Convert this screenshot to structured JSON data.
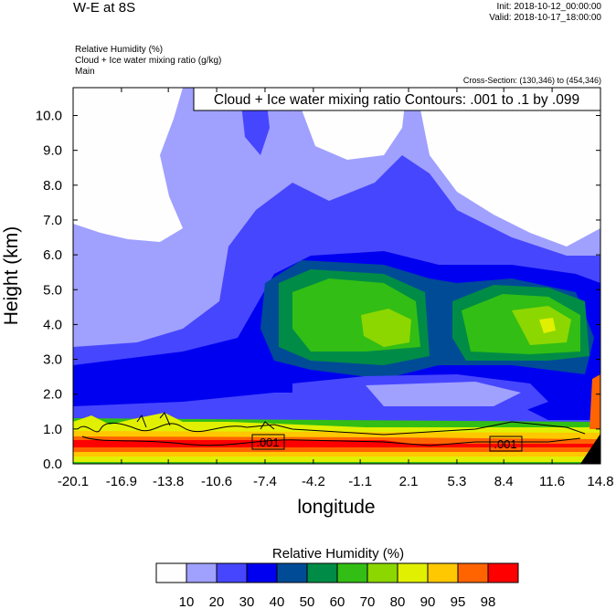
{
  "header": {
    "title": "W-E at 8S",
    "init": "Init: 2018-10-12_00:00:00",
    "valid": "Valid: 2018-10-17_18:00:00",
    "fields": [
      "Relative Humidity   (%)",
      "Cloud + Ice water mixing ratio   (g/kg)",
      "Main"
    ],
    "cross_section": "Cross-Section: (130,346) to (454,346)"
  },
  "chart_data": {
    "type": "heatmap",
    "subtype": "filled contour cross-section with line contours",
    "title": "W-E at 8S",
    "contour_title": "Cloud + Ice water mixing ratio Contours: .001 to .1 by .099",
    "contour_labels": [
      ".001",
      ".001"
    ],
    "xlabel": "longitude",
    "ylabel": "Height (km)",
    "xlim": [
      -20.1,
      14.8
    ],
    "ylim": [
      0,
      10.8
    ],
    "x_ticks": [
      -20.1,
      -16.9,
      -13.8,
      -10.6,
      -7.4,
      -4.2,
      -1.1,
      2.1,
      5.3,
      8.4,
      11.6,
      14.8
    ],
    "x_tick_labels": [
      "-20.1",
      "-16.9",
      "-13.8",
      "-10.6",
      "-7.4",
      "-4.2",
      "-1.1",
      "2.1",
      "5.3",
      "8.4",
      "11.6",
      "14.8"
    ],
    "y_ticks": [
      0,
      1,
      2,
      3,
      4,
      5,
      6,
      7,
      8,
      9,
      10
    ],
    "y_tick_labels": [
      "0.0",
      "1.0",
      "2.0",
      "3.0",
      "4.0",
      "5.0",
      "6.0",
      "7.0",
      "8.0",
      "9.0",
      "10.0"
    ],
    "colorbar": {
      "title": "Relative Humidity  (%)",
      "levels": [
        "10",
        "20",
        "30",
        "40",
        "50",
        "60",
        "70",
        "80",
        "90",
        "95",
        "98"
      ],
      "colors": [
        "#fefefe",
        "#a0a0ff",
        "#4646ff",
        "#0000f0",
        "#004b96",
        "#008c46",
        "#32be14",
        "#8cd700",
        "#e1f000",
        "#ffc800",
        "#ff6400",
        "#ff0000"
      ]
    }
  }
}
